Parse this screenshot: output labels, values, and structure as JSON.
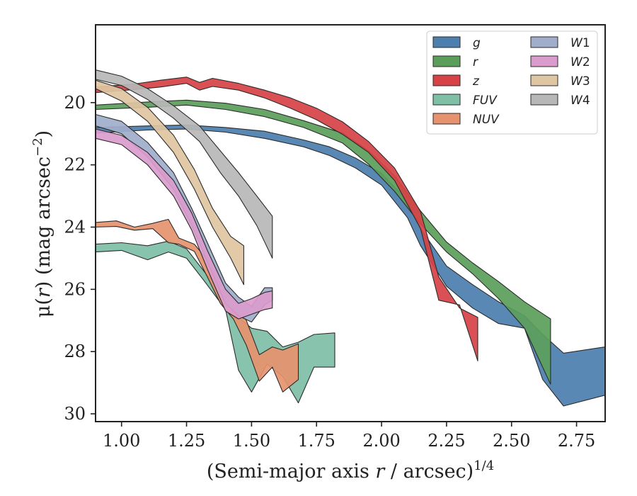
{
  "chart_data": {
    "type": "area",
    "xlabel": {
      "prefix": "(Semi-major axis ",
      "var": "r",
      "mid": " / arcsec)",
      "sup": "1/4"
    },
    "ylabel": {
      "prefix": "μ(",
      "var": "r",
      "mid": ") (mag arcsec",
      "sup": "−2",
      "suffix": ")"
    },
    "xlim": [
      0.9,
      2.86
    ],
    "ylim": [
      30.25,
      17.5
    ],
    "y_inverted": true,
    "xticks": [
      1.0,
      1.25,
      1.5,
      1.75,
      2.0,
      2.25,
      2.5,
      2.75
    ],
    "xtick_labels": [
      "1.00",
      "1.25",
      "1.50",
      "1.75",
      "2.00",
      "2.25",
      "2.50",
      "2.75"
    ],
    "yticks": [
      20,
      22,
      24,
      26,
      28,
      30
    ],
    "ytick_labels": [
      "20",
      "22",
      "24",
      "26",
      "28",
      "30"
    ],
    "grid": false,
    "legend_placement": "top-right",
    "legend_columns": 2,
    "series": [
      {
        "name": "g",
        "label": "g",
        "sub": "",
        "color": "#4c7eae",
        "x": [
          0.9,
          1.1,
          1.25,
          1.4,
          1.55,
          1.7,
          1.8,
          1.9,
          2.0,
          2.1,
          2.15,
          2.25,
          2.35,
          2.45,
          2.55,
          2.62,
          2.7,
          2.86
        ],
        "top": [
          20.8,
          20.75,
          20.72,
          20.8,
          20.92,
          21.2,
          21.42,
          21.78,
          22.28,
          23.15,
          24.05,
          25.25,
          25.85,
          26.4,
          26.85,
          27.45,
          28.05,
          27.85
        ],
        "bot": [
          20.98,
          20.88,
          20.85,
          20.95,
          21.15,
          21.42,
          21.7,
          22.1,
          22.65,
          23.7,
          24.6,
          25.9,
          26.6,
          27.1,
          27.25,
          28.9,
          29.75,
          29.4
        ]
      },
      {
        "name": "r",
        "label": "r",
        "sub": "",
        "color": "#5b9e5b",
        "x": [
          0.9,
          1.1,
          1.25,
          1.4,
          1.55,
          1.7,
          1.85,
          1.95,
          2.05,
          2.15,
          2.25,
          2.35,
          2.45,
          2.55,
          2.65
        ],
        "top": [
          20.08,
          19.98,
          19.92,
          20.02,
          20.22,
          20.58,
          20.98,
          21.55,
          22.35,
          23.48,
          24.48,
          25.15,
          25.75,
          26.4,
          26.95
        ],
        "bot": [
          20.22,
          20.15,
          20.08,
          20.22,
          20.45,
          20.8,
          21.3,
          21.98,
          22.85,
          23.9,
          24.8,
          25.5,
          26.3,
          27.25,
          29.05
        ]
      },
      {
        "name": "z",
        "label": "z",
        "sub": "",
        "color": "#d64245",
        "x": [
          0.9,
          1.05,
          1.15,
          1.25,
          1.3,
          1.35,
          1.45,
          1.55,
          1.65,
          1.75,
          1.85,
          1.95,
          2.05,
          2.15,
          2.22,
          2.3,
          2.37
        ],
        "top": [
          19.5,
          19.4,
          19.28,
          19.18,
          19.35,
          19.22,
          19.38,
          19.6,
          19.85,
          20.18,
          20.62,
          21.25,
          22.1,
          23.5,
          25.6,
          26.6,
          26.9
        ],
        "bot": [
          19.68,
          19.58,
          19.5,
          19.38,
          19.6,
          19.48,
          19.6,
          19.85,
          20.18,
          20.55,
          21.02,
          21.6,
          22.5,
          24.05,
          26.35,
          26.5,
          28.3
        ]
      },
      {
        "name": "FUV",
        "label": "FUV",
        "sub": "",
        "color": "#7ebfa6",
        "x": [
          0.9,
          1.0,
          1.1,
          1.18,
          1.25,
          1.32,
          1.4,
          1.45,
          1.5,
          1.56,
          1.62,
          1.68,
          1.74,
          1.82
        ],
        "top": [
          24.55,
          24.5,
          24.6,
          24.45,
          24.7,
          25.45,
          26.2,
          26.9,
          27.25,
          27.35,
          27.85,
          27.7,
          27.45,
          27.4
        ],
        "bot": [
          24.8,
          24.75,
          25.05,
          24.8,
          25.0,
          25.75,
          26.65,
          28.6,
          29.3,
          28.4,
          28.8,
          29.65,
          28.5,
          28.5
        ]
      },
      {
        "name": "NUV",
        "label": "NUV",
        "sub": "",
        "color": "#e6926e",
        "x": [
          0.9,
          0.98,
          1.05,
          1.12,
          1.18,
          1.22,
          1.28,
          1.33,
          1.38,
          1.43,
          1.48,
          1.53,
          1.58,
          1.62,
          1.68
        ],
        "top": [
          23.85,
          23.8,
          24.0,
          23.88,
          23.75,
          24.35,
          24.55,
          25.05,
          25.85,
          26.35,
          27.0,
          28.1,
          27.85,
          27.95,
          27.75
        ],
        "bot": [
          24.0,
          23.98,
          24.1,
          24.05,
          24.5,
          24.55,
          24.78,
          25.6,
          26.45,
          26.95,
          27.8,
          28.95,
          28.5,
          29.3,
          28.9
        ]
      },
      {
        "name": "W1",
        "label": "W",
        "sub": "1",
        "color": "#a0aecb",
        "x": [
          0.9,
          1.0,
          1.1,
          1.2,
          1.27,
          1.33,
          1.4,
          1.45,
          1.5,
          1.55,
          1.58
        ],
        "top": [
          20.38,
          20.6,
          21.28,
          22.25,
          23.4,
          24.5,
          25.8,
          26.25,
          26.55,
          25.95,
          25.95
        ],
        "bot": [
          20.75,
          21.0,
          21.75,
          22.78,
          23.95,
          25.1,
          26.45,
          26.85,
          27.05,
          26.5,
          26.35
        ]
      },
      {
        "name": "W2",
        "label": "W",
        "sub": "2",
        "color": "#da9ccd",
        "x": [
          0.9,
          1.0,
          1.1,
          1.2,
          1.27,
          1.33,
          1.4,
          1.45,
          1.5,
          1.55,
          1.58
        ],
        "top": [
          20.85,
          21.05,
          21.6,
          22.5,
          23.55,
          24.75,
          26.0,
          26.45,
          26.3,
          26.1,
          26.05
        ],
        "bot": [
          21.15,
          21.35,
          22.0,
          23.0,
          24.1,
          25.35,
          26.7,
          26.95,
          26.8,
          26.65,
          26.6
        ]
      },
      {
        "name": "W3",
        "label": "W",
        "sub": "3",
        "color": "#dfc6a2",
        "x": [
          0.9,
          1.0,
          1.1,
          1.2,
          1.28,
          1.35,
          1.42,
          1.47
        ],
        "top": [
          19.28,
          19.55,
          20.15,
          21.05,
          22.15,
          23.4,
          24.3,
          24.6
        ],
        "bot": [
          19.55,
          19.95,
          20.6,
          21.6,
          22.78,
          24.0,
          25.0,
          25.85
        ]
      },
      {
        "name": "W4",
        "label": "W",
        "sub": "4",
        "color": "#b7b7b7",
        "x": [
          0.9,
          1.0,
          1.1,
          1.2,
          1.3,
          1.38,
          1.45,
          1.52,
          1.58
        ],
        "top": [
          18.95,
          19.15,
          19.55,
          20.1,
          20.75,
          21.55,
          22.25,
          23.0,
          23.65
        ],
        "bot": [
          19.25,
          19.45,
          19.9,
          20.5,
          21.25,
          22.25,
          23.0,
          23.95,
          25.0
        ]
      }
    ]
  }
}
